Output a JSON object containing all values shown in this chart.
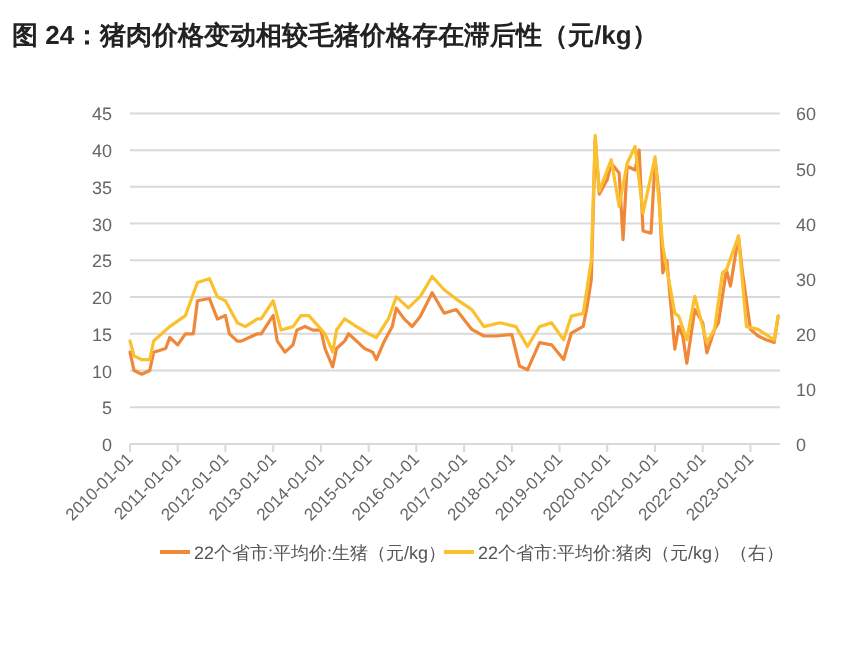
{
  "chart_data": {
    "type": "line",
    "title": "图 24：猪肉价格变动相较毛猪价格存在滞后性（元/kg）",
    "xlim": [
      "2010-01-01",
      "2023-08-15"
    ],
    "xticks": [
      "2010-01-01",
      "2011-01-01",
      "2012-01-01",
      "2013-01-01",
      "2014-01-01",
      "2015-01-01",
      "2016-01-01",
      "2017-01-01",
      "2018-01-01",
      "2019-01-01",
      "2020-01-01",
      "2021-01-01",
      "2022-01-01",
      "2023-01-01"
    ],
    "ylim": [
      0,
      45
    ],
    "yticks": [
      0,
      5,
      10,
      15,
      20,
      25,
      30,
      35,
      40,
      45
    ],
    "y2lim": [
      0,
      60
    ],
    "y2ticks": [
      0,
      10,
      20,
      30,
      40,
      50,
      60
    ],
    "grid": "y",
    "legend": "bottom",
    "line_style": "solid",
    "marker": "none",
    "series": [
      {
        "name": "22个省市:平均价:生猪（元/kg）",
        "color": "#f0883a",
        "x": [
          "2010-01",
          "2010-02",
          "2010-04",
          "2010-06",
          "2010-07",
          "2010-10",
          "2010-11",
          "2011-01",
          "2011-03",
          "2011-05",
          "2011-06",
          "2011-09",
          "2011-11",
          "2012-01",
          "2012-02",
          "2012-04",
          "2012-05",
          "2012-07",
          "2012-09",
          "2012-10",
          "2013-01",
          "2013-02",
          "2013-04",
          "2013-06",
          "2013-07",
          "2013-09",
          "2013-11",
          "2014-01",
          "2014-02",
          "2014-04",
          "2014-05",
          "2014-07",
          "2014-08",
          "2014-10",
          "2014-12",
          "2015-02",
          "2015-03",
          "2015-05",
          "2015-07",
          "2015-08",
          "2015-10",
          "2015-12",
          "2016-02",
          "2016-05",
          "2016-08",
          "2016-11",
          "2017-03",
          "2017-06",
          "2017-09",
          "2018-01",
          "2018-03",
          "2018-05",
          "2018-08",
          "2018-11",
          "2019-02",
          "2019-04",
          "2019-07",
          "2019-08",
          "2019-09",
          "2019-10",
          "2019-11",
          "2020-01",
          "2020-02",
          "2020-04",
          "2020-05",
          "2020-06",
          "2020-08",
          "2020-09",
          "2020-10",
          "2020-12",
          "2021-01",
          "2021-02",
          "2021-03",
          "2021-04",
          "2021-06",
          "2021-07",
          "2021-08",
          "2021-09",
          "2021-11",
          "2022-01",
          "2022-02",
          "2022-04",
          "2022-05",
          "2022-07",
          "2022-08",
          "2022-10",
          "2022-11",
          "2023-01",
          "2023-03",
          "2023-05",
          "2023-07",
          "2023-08"
        ],
        "values": [
          12.5,
          10,
          9.5,
          10,
          12.5,
          13,
          14.5,
          13.5,
          15,
          15,
          19.5,
          19.8,
          17,
          17.5,
          15,
          14,
          14,
          14.5,
          15,
          15,
          17.5,
          14,
          12.5,
          13.5,
          15.5,
          16,
          15.5,
          15.5,
          13,
          10.5,
          13,
          14,
          15,
          14,
          13,
          12.5,
          11.5,
          14,
          16,
          18.5,
          17,
          16,
          17.4,
          20.6,
          17.8,
          18.3,
          15.6,
          14.7,
          14.7,
          14.9,
          10.6,
          10.1,
          13.8,
          13.5,
          11.5,
          15.1,
          16,
          18.8,
          22.4,
          41.4,
          34,
          36,
          38.2,
          36.9,
          27.8,
          37.8,
          37.3,
          40,
          29,
          28.7,
          38.7,
          34,
          23.3,
          25,
          12.9,
          16,
          14.7,
          11,
          18.3,
          16.5,
          12.4,
          15.6,
          16.5,
          23.7,
          21.5,
          28.3,
          23.3,
          15.6,
          14.7,
          14.2,
          13.8,
          17.4
        ]
      },
      {
        "name": "22个省市:平均价:猪肉（元/kg）（右）",
        "color": "#fbc02d",
        "axis": "y2",
        "x": [
          "2010-01",
          "2010-02",
          "2010-04",
          "2010-06",
          "2010-07",
          "2010-09",
          "2010-11",
          "2011-03",
          "2011-06",
          "2011-09",
          "2011-11",
          "2012-01",
          "2012-04",
          "2012-06",
          "2012-09",
          "2012-10",
          "2013-01",
          "2013-03",
          "2013-06",
          "2013-08",
          "2013-10",
          "2014-02",
          "2014-04",
          "2014-05",
          "2014-07",
          "2014-10",
          "2015-01",
          "2015-03",
          "2015-06",
          "2015-08",
          "2015-11",
          "2016-02",
          "2016-05",
          "2016-08",
          "2016-11",
          "2017-03",
          "2017-06",
          "2017-10",
          "2018-02",
          "2018-05",
          "2018-08",
          "2018-11",
          "2019-02",
          "2019-04",
          "2019-07",
          "2019-09",
          "2019-10",
          "2019-11",
          "2020-02",
          "2020-04",
          "2020-06",
          "2020-08",
          "2020-10",
          "2021-01",
          "2021-03",
          "2021-06",
          "2021-07",
          "2021-09",
          "2021-11",
          "2022-02",
          "2022-04",
          "2022-06",
          "2022-07",
          "2022-10",
          "2022-12",
          "2023-03",
          "2023-07",
          "2023-08"
        ],
        "values": [
          18.7,
          16,
          15.3,
          15.3,
          18.7,
          20,
          21.3,
          23.3,
          29.3,
          30,
          26.7,
          26,
          22,
          21.3,
          22.7,
          22.7,
          26,
          20.7,
          21.3,
          23.3,
          23.3,
          20,
          16.7,
          20.7,
          22.7,
          21.3,
          20,
          19.3,
          22.7,
          26.7,
          24.7,
          26.8,
          30.4,
          28,
          26.3,
          24.4,
          21.3,
          22,
          21.3,
          17.7,
          21.3,
          22,
          18.9,
          23.2,
          23.7,
          33.3,
          56,
          45.9,
          51.6,
          43.1,
          50.9,
          54,
          41.9,
          52.1,
          35.9,
          23.7,
          23.2,
          18.9,
          26.8,
          18.4,
          20.8,
          31.1,
          31.6,
          37.7,
          21.3,
          20.8,
          18.9,
          23.2
        ]
      }
    ]
  }
}
